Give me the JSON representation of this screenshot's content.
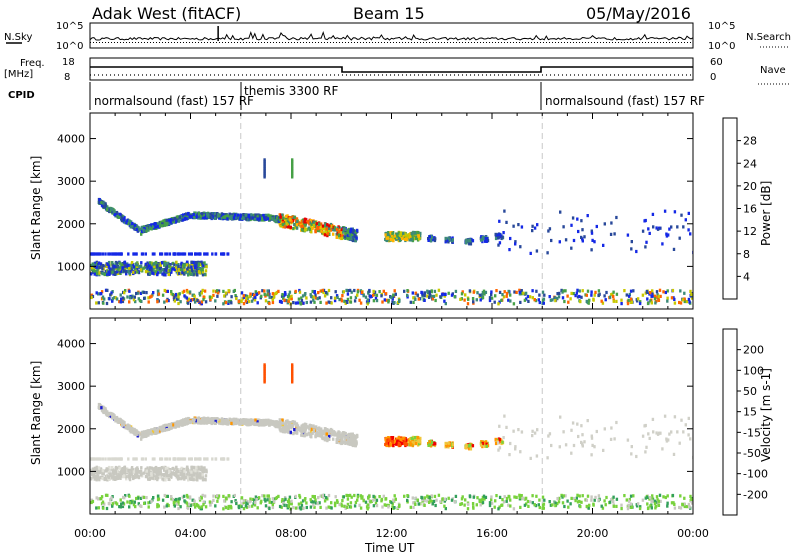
{
  "header": {
    "title": "Adak West (fitACF)",
    "beam": "Beam 15",
    "date": "05/May/2016"
  },
  "noise_panel": {
    "left_label": "N.Sky",
    "right_label": "N.Search",
    "left_ticks": [
      "10^5",
      "10^0"
    ],
    "right_ticks": [
      "10^5",
      "10^0"
    ]
  },
  "freq_panel": {
    "left_label_1": "Freq.",
    "left_label_2": "[MHz]",
    "right_label": "Nave",
    "left_ticks": [
      "18",
      "8"
    ],
    "right_ticks": [
      "60",
      "0"
    ]
  },
  "cpid": {
    "label": "CPID",
    "segments": [
      {
        "text": "normalsound (fast) 157 RF",
        "start_hour": 0
      },
      {
        "text": "themis 3300 RF",
        "start_hour": 6
      },
      {
        "text": "normalsound (fast) 157 RF",
        "start_hour": 18
      }
    ]
  },
  "chart_data": [
    {
      "type": "heatmap",
      "name": "power",
      "xlabel": "",
      "ylabel": "Slant Range [km]",
      "xlim": [
        0,
        24
      ],
      "ylim": [
        0,
        4600
      ],
      "yticks": [
        "4000",
        "3000",
        "2000",
        "1000"
      ],
      "colorbar": {
        "label": "Power [dB]",
        "ticks": [
          "28",
          "24",
          "20",
          "16",
          "12",
          "8",
          "4"
        ],
        "colors": [
          "#1428e6",
          "#28489a",
          "#3c8a78",
          "#46a046",
          "#c8c800",
          "#ffb400",
          "#ff6400",
          "#e60000"
        ]
      }
    },
    {
      "type": "heatmap",
      "name": "velocity",
      "xlabel": "Time UT",
      "ylabel": "Slant Range [km]",
      "xlim": [
        0,
        24
      ],
      "ylim": [
        0,
        4600
      ],
      "yticks": [
        "4000",
        "3000",
        "2000",
        "1000"
      ],
      "xticks": [
        "00:00",
        "04:00",
        "08:00",
        "12:00",
        "16:00",
        "20:00",
        "00:00"
      ],
      "colorbar": {
        "label": "Velocity [m s-1]",
        "ticks": [
          "200",
          "100",
          "50",
          "15",
          "-15",
          "-50",
          "-100",
          "-200"
        ],
        "colors": [
          "#1e1ed2",
          "#3c64a0",
          "#32a05a",
          "#78d23c",
          "#c8c8c0",
          "#f0c83c",
          "#ff9600",
          "#ff5000",
          "#f00000"
        ]
      }
    }
  ]
}
